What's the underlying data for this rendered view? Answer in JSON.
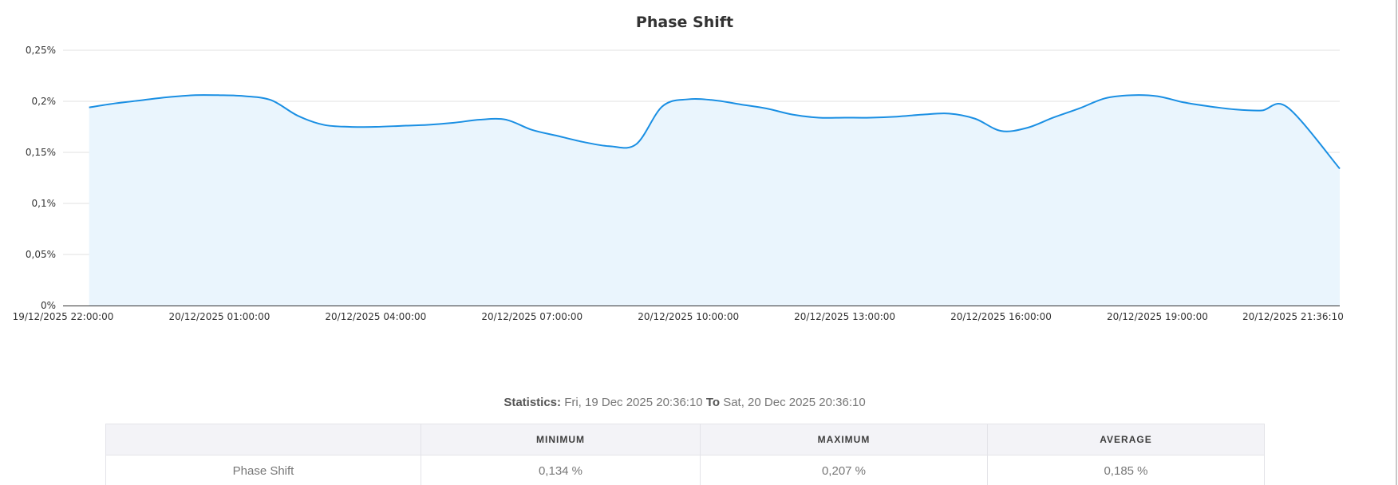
{
  "chart_data": {
    "type": "area",
    "title": "Phase Shift",
    "xlabel": "",
    "ylabel": "",
    "ylim": [
      0,
      0.25
    ],
    "y_ticks": [
      0,
      0.05,
      0.1,
      0.15,
      0.2,
      0.25
    ],
    "y_tick_labels": [
      "0%",
      "0,05%",
      "0,1%",
      "0,15%",
      "0,2%",
      "0,25%"
    ],
    "x_range": [
      "2025-12-19T22:00:00",
      "2025-12-20T22:30:00"
    ],
    "x_tick_times": [
      "2025-12-19T22:00:00",
      "2025-12-20T01:00:00",
      "2025-12-20T04:00:00",
      "2025-12-20T07:00:00",
      "2025-12-20T10:00:00",
      "2025-12-20T13:00:00",
      "2025-12-20T16:00:00",
      "2025-12-20T19:00:00",
      "2025-12-20T21:36:10"
    ],
    "x_tick_labels": [
      "19/12/2025 22:00:00",
      "20/12/2025 01:00:00",
      "20/12/2025 04:00:00",
      "20/12/2025 07:00:00",
      "20/12/2025 10:00:00",
      "20/12/2025 13:00:00",
      "20/12/2025 16:00:00",
      "20/12/2025 19:00:00",
      "20/12/2025 21:36:10"
    ],
    "grid": true,
    "legend": "none",
    "line_color": "#1a8fe3",
    "fill_color": "#eaf5fd",
    "series": [
      {
        "x": [
          "2025-12-19T22:30:00",
          "2025-12-19T23:00:00",
          "2025-12-19T23:30:00",
          "2025-12-20T00:00:00",
          "2025-12-20T00:30:00",
          "2025-12-20T01:00:00",
          "2025-12-20T01:30:00",
          "2025-12-20T02:00:00",
          "2025-12-20T02:30:00",
          "2025-12-20T03:00:00",
          "2025-12-20T03:30:00",
          "2025-12-20T04:00:00",
          "2025-12-20T04:30:00",
          "2025-12-20T05:00:00",
          "2025-12-20T05:30:00",
          "2025-12-20T06:00:00",
          "2025-12-20T06:30:00",
          "2025-12-20T07:00:00",
          "2025-12-20T07:30:00",
          "2025-12-20T08:00:00",
          "2025-12-20T08:30:00",
          "2025-12-20T09:00:00",
          "2025-12-20T09:30:00",
          "2025-12-20T10:00:00",
          "2025-12-20T10:30:00",
          "2025-12-20T11:00:00",
          "2025-12-20T11:30:00",
          "2025-12-20T12:00:00",
          "2025-12-20T12:30:00",
          "2025-12-20T13:00:00",
          "2025-12-20T13:30:00",
          "2025-12-20T14:00:00",
          "2025-12-20T14:30:00",
          "2025-12-20T15:00:00",
          "2025-12-20T15:30:00",
          "2025-12-20T16:00:00",
          "2025-12-20T16:30:00",
          "2025-12-20T17:00:00",
          "2025-12-20T17:30:00",
          "2025-12-20T18:00:00",
          "2025-12-20T18:30:00",
          "2025-12-20T19:00:00",
          "2025-12-20T19:30:00",
          "2025-12-20T20:00:00",
          "2025-12-20T20:30:00",
          "2025-12-20T21:00:00",
          "2025-12-20T21:30:00",
          "2025-12-20T22:30:00"
        ],
        "values": [
          0.194,
          0.198,
          0.201,
          0.204,
          0.206,
          0.206,
          0.205,
          0.201,
          0.186,
          0.177,
          0.175,
          0.175,
          0.176,
          0.177,
          0.179,
          0.182,
          0.182,
          0.172,
          0.166,
          0.16,
          0.156,
          0.158,
          0.195,
          0.202,
          0.201,
          0.197,
          0.193,
          0.187,
          0.184,
          0.184,
          0.184,
          0.185,
          0.187,
          0.188,
          0.183,
          0.171,
          0.174,
          0.184,
          0.193,
          0.203,
          0.206,
          0.205,
          0.199,
          0.195,
          0.192,
          0.191,
          0.194,
          0.134
        ]
      }
    ]
  },
  "stats": {
    "label": "Statistics:",
    "from": "Fri, 19 Dec 2025 20:36:10",
    "to_word": "To",
    "to": "Sat, 20 Dec 2025 20:36:10",
    "columns": [
      "",
      "MINIMUM",
      "MAXIMUM",
      "AVERAGE"
    ],
    "rows": [
      {
        "label": "Phase Shift",
        "minimum": "0,134 %",
        "maximum": "0,207 %",
        "average": "0,185 %"
      }
    ]
  }
}
